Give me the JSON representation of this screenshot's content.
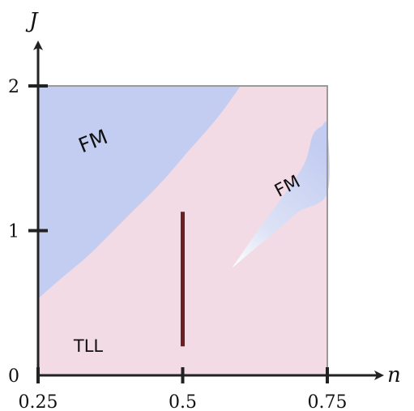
{
  "chart_data": {
    "type": "phase-diagram",
    "xlabel": "n",
    "ylabel": "J",
    "xlim": [
      0.25,
      0.75
    ],
    "ylim": [
      0,
      2
    ],
    "x_ticks": [
      {
        "value": 0.25,
        "label": "0.25"
      },
      {
        "value": 0.5,
        "label": "0.5"
      },
      {
        "value": 0.75,
        "label": "0.75"
      }
    ],
    "y_ticks": [
      {
        "value": 0,
        "label": "0"
      },
      {
        "value": 1,
        "label": "1"
      },
      {
        "value": 2,
        "label": "2"
      }
    ],
    "colors": {
      "background_region": "#f2dbe4",
      "fm_region": "#c3cdf1",
      "segment": "#6a1f24",
      "frame": "#9a9a9a",
      "axis": "#222222"
    },
    "regions": [
      {
        "name": "FM",
        "label": "FM",
        "boundary": [
          [
            0.25,
            2.0
          ],
          [
            0.6,
            2.0
          ],
          [
            0.56,
            1.78
          ],
          [
            0.51,
            1.55
          ],
          [
            0.46,
            1.32
          ],
          [
            0.4,
            1.08
          ],
          [
            0.34,
            0.84
          ],
          [
            0.29,
            0.67
          ],
          [
            0.25,
            0.53
          ]
        ]
      },
      {
        "name": "FM",
        "label": "FM",
        "boundary": [
          [
            0.585,
            0.74
          ],
          [
            0.63,
            1.0
          ],
          [
            0.67,
            1.22
          ],
          [
            0.71,
            1.46
          ],
          [
            0.725,
            1.66
          ],
          [
            0.74,
            1.72
          ],
          [
            0.75,
            1.72
          ],
          [
            0.75,
            1.26
          ],
          [
            0.7,
            1.13
          ],
          [
            0.66,
            0.99
          ],
          [
            0.62,
            0.86
          ],
          [
            0.585,
            0.74
          ]
        ]
      },
      {
        "name": "TLL",
        "label": "TLL"
      }
    ],
    "segment": {
      "x": 0.5,
      "y_from": 0.2,
      "y_to": 1.13
    }
  }
}
